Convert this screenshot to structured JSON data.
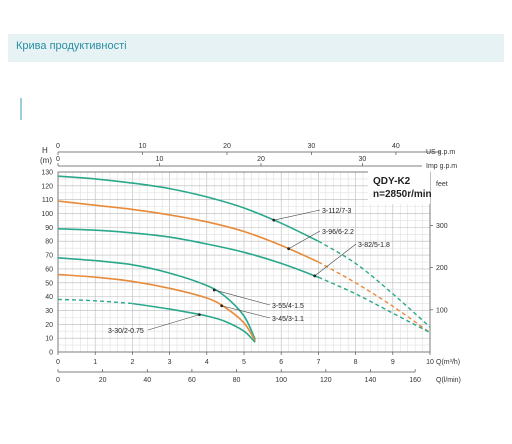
{
  "page": {
    "title": "Крива продуктивності"
  },
  "chart_data": {
    "type": "line",
    "title": "QDY-K2",
    "subtitle": "n=2850r/min",
    "axes": {
      "h_label": "H",
      "h_unit": "(m)",
      "h_ticks": [
        0,
        10,
        20,
        30,
        40,
        50,
        60,
        70,
        80,
        90,
        100,
        110,
        120,
        130
      ],
      "h_range": [
        0,
        130
      ],
      "q_label": "Q(m³/h)",
      "q_ticks": [
        0,
        1,
        2,
        3,
        4,
        5,
        6,
        7,
        8,
        9,
        10
      ],
      "q_range": [
        0,
        10
      ],
      "lmin_label": "Q(l/min)",
      "lmin_ticks": [
        0,
        20,
        40,
        60,
        80,
        100,
        120,
        140,
        160
      ],
      "usgpm_label": "US g.p.m",
      "usgpm_ticks": [
        0,
        10,
        20,
        30,
        40
      ],
      "impgpm_label": "Imp g.p.m",
      "impgpm_ticks": [
        0,
        10,
        20,
        30
      ],
      "feet_label": "feet",
      "feet_ticks": [
        100,
        200,
        300
      ]
    },
    "grid": true,
    "series": [
      {
        "name": "3-112/7-3",
        "color": "#2aa88c",
        "style": "solid-dashed",
        "x": [
          0,
          1,
          2,
          3,
          4,
          5,
          6,
          7,
          8,
          9,
          10
        ],
        "y": [
          127,
          125,
          122,
          118,
          112,
          104,
          93,
          80,
          64,
          42,
          18
        ]
      },
      {
        "name": "3-96/6-2.2",
        "color": "#e88a3a",
        "style": "solid-dashed",
        "x": [
          0,
          1,
          2,
          3,
          4,
          5,
          6,
          7,
          8,
          9,
          10
        ],
        "y": [
          109,
          106,
          103,
          99,
          94,
          87,
          77,
          65,
          50,
          33,
          14
        ]
      },
      {
        "name": "3-82/5-1.8",
        "color": "#2aa88c",
        "style": "solid-dashed",
        "x": [
          0,
          1,
          2,
          3,
          4,
          5,
          6,
          7,
          8,
          9,
          10
        ],
        "y": [
          89,
          88,
          86,
          83,
          78,
          72,
          64,
          54,
          42,
          28,
          14
        ]
      },
      {
        "name": "3-55/4-1.5",
        "color": "#2aa88c",
        "style": "solid",
        "x": [
          0,
          1,
          2,
          3,
          4,
          4.5,
          5,
          5.3
        ],
        "y": [
          68,
          66,
          63,
          57,
          48,
          40,
          26,
          9
        ]
      },
      {
        "name": "3-45/3-1.1",
        "color": "#e88a3a",
        "style": "solid",
        "x": [
          0,
          1,
          2,
          3,
          4,
          4.5,
          5,
          5.3
        ],
        "y": [
          56,
          54,
          51,
          46,
          39,
          32,
          21,
          8
        ]
      },
      {
        "name": "3-30/2-0.75",
        "color": "#2aa88c",
        "style": "dashed-solid",
        "x": [
          0,
          1,
          2,
          3,
          4,
          4.5,
          5,
          5.3
        ],
        "y": [
          38,
          37,
          35,
          31,
          26,
          22,
          15,
          7
        ]
      }
    ],
    "annotations": [
      {
        "text": "3-112/7-3",
        "series": 0,
        "at_x": 5.8
      },
      {
        "text": "3-96/6-2.2",
        "series": 1,
        "at_x": 6.2
      },
      {
        "text": "3-82/5-1.8",
        "series": 2,
        "at_x": 6.9
      },
      {
        "text": "3-55/4-1.5",
        "series": 3,
        "at_x": 4.2
      },
      {
        "text": "3-45/3-1.1",
        "series": 4,
        "at_x": 4.4
      },
      {
        "text": "3-30/2-0.75",
        "series": 5,
        "at_x": 3.8
      }
    ]
  }
}
